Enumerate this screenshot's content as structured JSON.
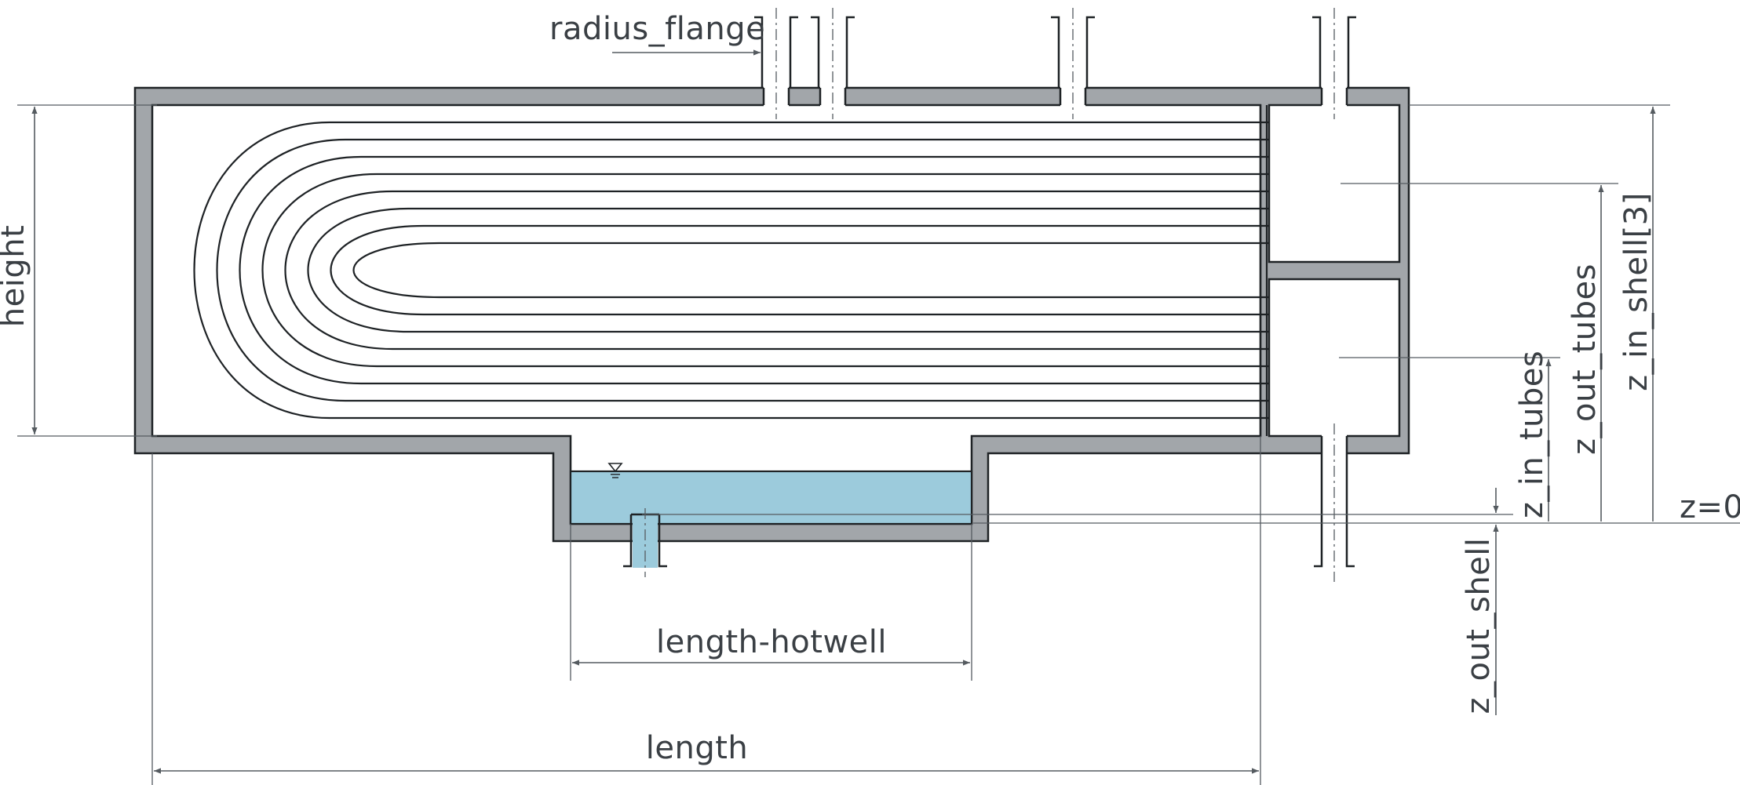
{
  "labels": {
    "radius_flange": "radius_flange",
    "height": "height",
    "length_hotwell": "length-hotwell",
    "length": "length",
    "z_in_tubes": "z_in_tubes",
    "z_out_tubes": "z_out_tubes",
    "z_in_shell": "z_in_shell[3]",
    "z_out_shell": "z_out_shell",
    "z_zero": "z=0"
  },
  "colors": {
    "wall": "#a2a6aa",
    "water": "#9ccbdc",
    "outline": "#1e2225",
    "dimension": "#555b60"
  }
}
